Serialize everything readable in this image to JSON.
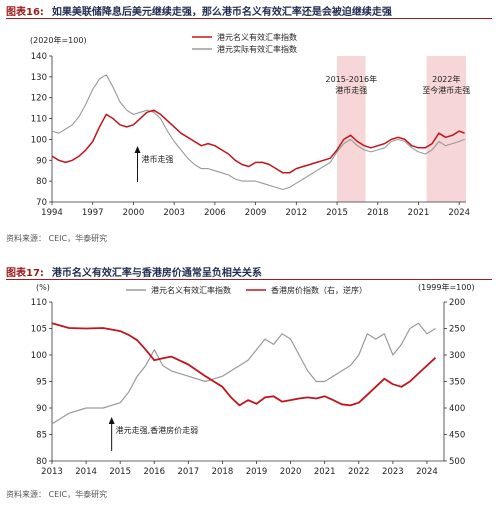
{
  "figure16": {
    "label": "图表16:",
    "title": "如果美联储降息后美元继续走强，那么港币名义有效汇率还是会被迫继续走强",
    "source": "资料来源：    CEIC，华泰研究",
    "unit_label": "(2020年=100)",
    "shade_labels": [
      "2015-2016年港币走强",
      "2022年至今港币走强"
    ],
    "annotation": "港币走强",
    "colors": {
      "nominal": "#c0161b",
      "real": "#9a9a9a",
      "shade": "#f6d6d6"
    }
  },
  "figure17": {
    "label": "图表17:",
    "title": "港币名义有效汇率与香港房价通常呈负相关关系",
    "source": "资料来源：    CEIC，华泰研究",
    "left_unit": "(%)",
    "right_unit": "(1999年=100)",
    "annotation": "港元走强,香港房价走弱",
    "colors": {
      "hkd": "#9a9a9a",
      "house": "#c0161b"
    }
  },
  "chart_data": [
    {
      "type": "line",
      "title": "",
      "ylabel": "(2020年=100)",
      "ylim": [
        70,
        140
      ],
      "yticks": [
        70,
        80,
        90,
        100,
        110,
        120,
        130,
        140
      ],
      "xticks": [
        "1994",
        "1997",
        "2000",
        "2003",
        "2006",
        "2009",
        "2012",
        "2015",
        "2018",
        "2021",
        "2024"
      ],
      "xlim": [
        1994,
        2024.5
      ],
      "legend": "top-center",
      "grid": false,
      "shaded_periods": [
        [
          2015,
          2017.1
        ],
        [
          2021.6,
          2024.5
        ]
      ],
      "series": [
        {
          "name": "港元名义有效汇率指数",
          "color": "#c0161b",
          "x": [
            1994,
            1994.5,
            1995,
            1995.5,
            1996,
            1996.5,
            1997,
            1997.5,
            1998,
            1998.5,
            1999,
            1999.5,
            2000,
            2000.5,
            2001,
            2001.5,
            2002,
            2002.5,
            2003,
            2003.5,
            2004,
            2004.5,
            2005,
            2005.5,
            2006,
            2006.5,
            2007,
            2007.5,
            2008,
            2008.5,
            2009,
            2009.5,
            2010,
            2010.5,
            2011,
            2011.5,
            2012,
            2012.5,
            2013,
            2013.5,
            2014,
            2014.5,
            2015,
            2015.5,
            2016,
            2016.5,
            2017,
            2017.5,
            2018,
            2018.5,
            2019,
            2019.5,
            2020,
            2020.5,
            2021,
            2021.5,
            2022,
            2022.5,
            2023,
            2023.5,
            2024,
            2024.4
          ],
          "values": [
            92,
            90,
            89,
            90,
            92,
            95,
            99,
            106,
            112,
            110,
            107,
            106,
            107,
            110,
            113,
            114,
            112,
            109,
            106,
            103,
            101,
            99,
            97,
            98,
            97,
            95,
            93,
            90,
            88,
            87,
            89,
            89,
            88,
            86,
            84,
            84,
            86,
            87,
            88,
            89,
            90,
            91,
            95,
            100,
            102,
            99,
            97,
            96,
            97,
            98,
            100,
            101,
            100,
            97,
            96,
            96,
            98,
            103,
            101,
            102,
            104,
            103
          ]
        },
        {
          "name": "港元实际有效汇率指数",
          "color": "#9a9a9a",
          "x": [
            1994,
            1994.5,
            1995,
            1995.5,
            1996,
            1996.5,
            1997,
            1997.5,
            1998,
            1998.5,
            1999,
            1999.5,
            2000,
            2000.5,
            2001,
            2001.5,
            2002,
            2002.5,
            2003,
            2003.5,
            2004,
            2004.5,
            2005,
            2005.5,
            2006,
            2006.5,
            2007,
            2007.5,
            2008,
            2008.5,
            2009,
            2009.5,
            2010,
            2010.5,
            2011,
            2011.5,
            2012,
            2012.5,
            2013,
            2013.5,
            2014,
            2014.5,
            2015,
            2015.5,
            2016,
            2016.5,
            2017,
            2017.5,
            2018,
            2018.5,
            2019,
            2019.5,
            2020,
            2020.5,
            2021,
            2021.5,
            2022,
            2022.5,
            2023,
            2023.5,
            2024,
            2024.4
          ],
          "values": [
            104,
            103,
            105,
            107,
            111,
            117,
            124,
            129,
            131,
            125,
            118,
            114,
            112,
            113,
            114,
            113,
            110,
            104,
            99,
            95,
            91,
            88,
            86,
            86,
            85,
            84,
            83,
            81,
            80,
            80,
            80,
            79,
            78,
            77,
            76,
            77,
            79,
            81,
            83,
            85,
            87,
            89,
            94,
            98,
            100,
            97,
            95,
            94,
            95,
            96,
            99,
            100,
            99,
            96,
            94,
            93,
            95,
            99,
            97,
            98,
            99,
            100
          ]
        }
      ]
    },
    {
      "type": "line",
      "title": "",
      "ylabel": "(%)",
      "ylim": [
        80,
        110
      ],
      "yticks": [
        80,
        85,
        90,
        95,
        100,
        105,
        110
      ],
      "y2label": "(1999年=100)",
      "y2lim": [
        200,
        500
      ],
      "y2ticks": [
        200,
        250,
        300,
        350,
        400,
        450,
        500
      ],
      "y2_inverted": true,
      "xticks": [
        "2013",
        "2014",
        "2015",
        "2016",
        "2017",
        "2018",
        "2019",
        "2020",
        "2021",
        "2022",
        "2023",
        "2024"
      ],
      "xlim": [
        2013,
        2024.5
      ],
      "legend": "top-center",
      "grid": false,
      "series": [
        {
          "name": "港元名义有效汇率指数",
          "axis": "left",
          "color": "#9a9a9a",
          "x": [
            2013,
            2013.5,
            2014,
            2014.5,
            2015,
            2015.25,
            2015.5,
            2015.75,
            2016,
            2016.25,
            2016.5,
            2017,
            2017.5,
            2018,
            2018.25,
            2018.5,
            2018.75,
            2019,
            2019.25,
            2019.5,
            2019.75,
            2020,
            2020.25,
            2020.5,
            2020.75,
            2021,
            2021.25,
            2021.5,
            2021.75,
            2022,
            2022.25,
            2022.5,
            2022.75,
            2023,
            2023.25,
            2023.5,
            2023.75,
            2024,
            2024.25
          ],
          "values": [
            87,
            89,
            90,
            90,
            91,
            93,
            96,
            98,
            101,
            98,
            97,
            96,
            95,
            96,
            97,
            98,
            99,
            101,
            103,
            102,
            104,
            103,
            100,
            97,
            95,
            95,
            96,
            97,
            98,
            100,
            104,
            103,
            104,
            100,
            102,
            105,
            106,
            104,
            105
          ]
        },
        {
          "name": "香港房价指数（右，逆序）",
          "axis": "right",
          "color": "#c0161b",
          "x": [
            2013,
            2013.5,
            2014,
            2014.5,
            2015,
            2015.25,
            2015.5,
            2015.75,
            2016,
            2016.25,
            2016.5,
            2017,
            2017.5,
            2018,
            2018.25,
            2018.5,
            2018.75,
            2019,
            2019.25,
            2019.5,
            2019.75,
            2020,
            2020.25,
            2020.5,
            2020.75,
            2021,
            2021.25,
            2021.5,
            2021.75,
            2022,
            2022.25,
            2022.5,
            2022.75,
            2023,
            2023.25,
            2023.5,
            2023.75,
            2024,
            2024.25
          ],
          "values": [
            240,
            249,
            250,
            249,
            255,
            262,
            272,
            290,
            310,
            306,
            303,
            318,
            340,
            360,
            380,
            395,
            385,
            392,
            380,
            378,
            388,
            385,
            382,
            380,
            382,
            378,
            385,
            393,
            395,
            390,
            375,
            360,
            345,
            355,
            360,
            350,
            335,
            320,
            305
          ]
        }
      ]
    }
  ]
}
